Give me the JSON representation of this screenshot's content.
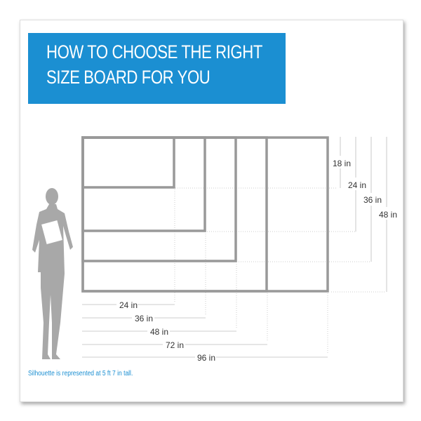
{
  "title": {
    "line1": "HOW TO CHOOSE THE RIGHT",
    "line2": "SIZE BOARD FOR YOU"
  },
  "heights": [
    "18 in",
    "24 in",
    "36 in",
    "48 in"
  ],
  "widths": [
    "24 in",
    "36 in",
    "48 in",
    "72 in",
    "96 in"
  ],
  "note": "Silhouette is represented at 5 ft 7 in tall.",
  "colors": {
    "accent": "#1b8fd2",
    "frame": "#9a9a9a",
    "silhouette": "#a8a8a8"
  },
  "icons": {
    "figure": "woman-silhouette-icon"
  }
}
